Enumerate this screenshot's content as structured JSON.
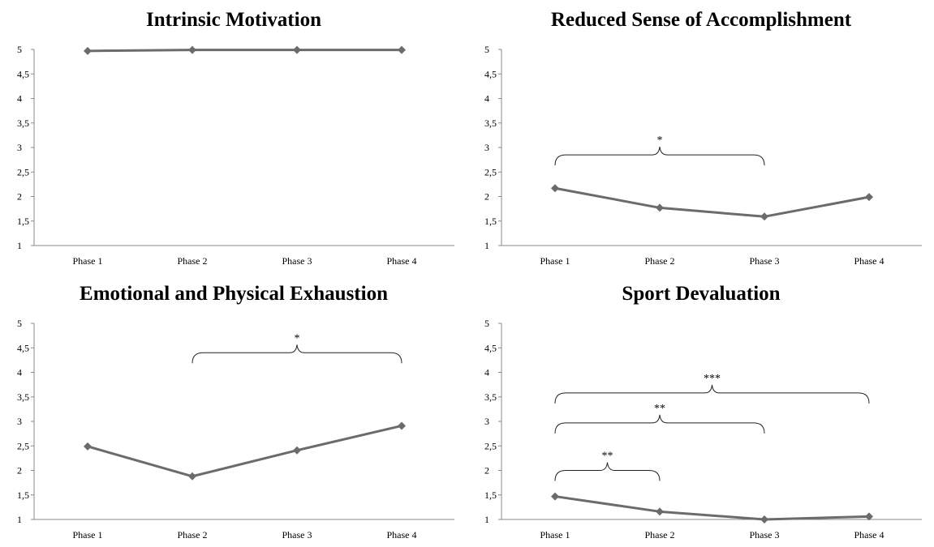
{
  "colors": {
    "line": "#6b6b6b",
    "axis": "#888888",
    "bracket": "#222222"
  },
  "chart_data": [
    {
      "type": "line",
      "title": "Intrinsic Motivation",
      "categories": [
        "Phase 1",
        "Phase 2",
        "Phase 3",
        "Phase 4"
      ],
      "values": [
        4.97,
        4.99,
        4.99,
        4.99
      ],
      "yticks": [
        "1",
        "1,5",
        "2",
        "2,5",
        "3",
        "3,5",
        "4",
        "4,5",
        "5"
      ],
      "ylim": [
        1,
        5
      ],
      "xlabel": "",
      "ylabel": "",
      "grid": false,
      "significance": []
    },
    {
      "type": "line",
      "title": "Reduced Sense of Accomplishment",
      "categories": [
        "Phase 1",
        "Phase 2",
        "Phase 3",
        "Phase 4"
      ],
      "values": [
        2.17,
        1.77,
        1.59,
        1.99
      ],
      "yticks": [
        "1",
        "1,5",
        "2",
        "2,5",
        "3",
        "3,5",
        "4",
        "4,5",
        "5"
      ],
      "ylim": [
        1,
        5
      ],
      "xlabel": "",
      "ylabel": "",
      "grid": false,
      "significance": [
        {
          "from": "Phase 1",
          "to": "Phase 3",
          "at": 2.85,
          "label": "*"
        }
      ]
    },
    {
      "type": "line",
      "title": "Emotional and Physical Exhaustion",
      "categories": [
        "Phase 1",
        "Phase 2",
        "Phase 3",
        "Phase 4"
      ],
      "values": [
        2.49,
        1.88,
        2.41,
        2.91
      ],
      "yticks": [
        "1",
        "1,5",
        "2",
        "2,5",
        "3",
        "3,5",
        "4",
        "4,5",
        "5"
      ],
      "ylim": [
        1,
        5
      ],
      "xlabel": "",
      "ylabel": "",
      "grid": false,
      "significance": [
        {
          "from": "Phase 2",
          "to": "Phase 4",
          "at": 4.4,
          "label": "*"
        }
      ]
    },
    {
      "type": "line",
      "title": "Sport Devaluation",
      "categories": [
        "Phase 1",
        "Phase 2",
        "Phase 3",
        "Phase 4"
      ],
      "values": [
        1.47,
        1.16,
        1.0,
        1.06
      ],
      "yticks": [
        "1",
        "1,5",
        "2",
        "2,5",
        "3",
        "3,5",
        "4",
        "4,5",
        "5"
      ],
      "ylim": [
        1,
        5
      ],
      "xlabel": "",
      "ylabel": "",
      "grid": false,
      "significance": [
        {
          "from": "Phase 1",
          "to": "Phase 4",
          "at": 3.58,
          "label": "***"
        },
        {
          "from": "Phase 1",
          "to": "Phase 3",
          "at": 2.97,
          "label": "**"
        },
        {
          "from": "Phase 1",
          "to": "Phase 2",
          "at": 2.0,
          "label": "**"
        }
      ]
    }
  ]
}
